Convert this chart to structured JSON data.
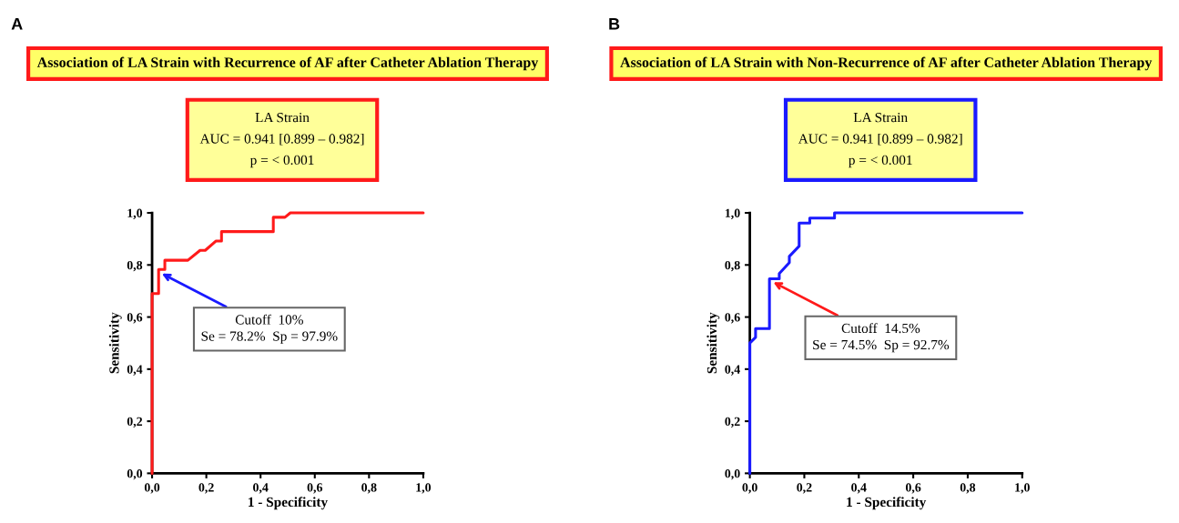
{
  "chart_data": [
    {
      "type": "line",
      "title": "Association of LA Strain with Recurrence of AF after Catheter Ablation Therapy",
      "subtitle": "LA Strain\nAUC = 0.941 [0.899 – 0.982]\np = < 0.001",
      "xlabel": "1 - Specificity",
      "ylabel": "Sensitivity",
      "annotations": [
        "A",
        {
          "text": "Cutoff  10%\nSe = 78.2%  Sp = 97.9%",
          "x": 0.036,
          "y": 0.767
        }
      ],
      "series": [
        {
          "color": "#ff1a1a",
          "x": [
            0,
            0,
            0.024,
            0.024,
            0.047,
            0.047,
            0.132,
            0.177,
            0.196,
            0.236,
            0.256,
            0.256,
            0.447,
            0.447,
            0.49,
            0.51,
            1.0
          ],
          "values": [
            0,
            0.69,
            0.69,
            0.783,
            0.783,
            0.818,
            0.818,
            0.856,
            0.856,
            0.892,
            0.892,
            0.928,
            0.928,
            0.983,
            0.983,
            1.0,
            1.0
          ]
        }
      ],
      "xlim": [
        0,
        1
      ],
      "ylim": [
        0,
        1
      ],
      "xticks": [
        {
          "value": 0,
          "label": "0,0"
        },
        {
          "value": 0.2,
          "label": "0,2"
        },
        {
          "value": 0.4,
          "label": "0,4"
        },
        {
          "value": 0.6,
          "label": "0,6"
        },
        {
          "value": 0.8,
          "label": "0,8"
        },
        {
          "value": 1,
          "label": "1,0"
        }
      ],
      "yticks": [
        {
          "value": 0,
          "label": "0,0"
        },
        {
          "value": 0.2,
          "label": "0,2"
        },
        {
          "value": 0.4,
          "label": "0,4"
        },
        {
          "value": 0.6,
          "label": "0,6"
        },
        {
          "value": 0.8,
          "label": "0,8"
        },
        {
          "value": 1,
          "label": "1,0"
        }
      ]
    },
    {
      "type": "line",
      "title": "Association of LA Strain with Non-Recurrence of AF after Catheter Ablation Therapy",
      "subtitle": "LA Strain\nAUC = 0.941 [0.899 – 0.982]\np = < 0.001",
      "xlabel": "1 - Specificity",
      "ylabel": "Sensitivity",
      "annotations": [
        "B",
        {
          "text": "Cutoff  14.5%\nSe = 74.5%  Sp = 92.7%",
          "x": 0.086,
          "y": 0.734
        }
      ],
      "series": [
        {
          "color": "#1a1aff",
          "x": [
            0,
            0,
            0.021,
            0.021,
            0.072,
            0.072,
            0.108,
            0.108,
            0.145,
            0.145,
            0.181,
            0.181,
            0.22,
            0.22,
            0.311,
            0.311,
            1.0
          ],
          "values": [
            0,
            0.5,
            0.522,
            0.556,
            0.556,
            0.747,
            0.747,
            0.767,
            0.809,
            0.833,
            0.872,
            0.961,
            0.961,
            0.98,
            0.98,
            1.0,
            1.0
          ]
        }
      ],
      "xlim": [
        0,
        1
      ],
      "ylim": [
        0,
        1
      ],
      "xticks": [
        {
          "value": 0,
          "label": "0,0"
        },
        {
          "value": 0.2,
          "label": "0,2"
        },
        {
          "value": 0.4,
          "label": "0,4"
        },
        {
          "value": 0.6,
          "label": "0,6"
        },
        {
          "value": 0.8,
          "label": "0,8"
        },
        {
          "value": 1,
          "label": "1,0"
        }
      ],
      "yticks": [
        {
          "value": 0,
          "label": "0,0"
        },
        {
          "value": 0.2,
          "label": "0,2"
        },
        {
          "value": 0.4,
          "label": "0,4"
        },
        {
          "value": 0.6,
          "label": "0,6"
        },
        {
          "value": 0.8,
          "label": "0,8"
        },
        {
          "value": 1,
          "label": "1,0"
        }
      ]
    }
  ]
}
